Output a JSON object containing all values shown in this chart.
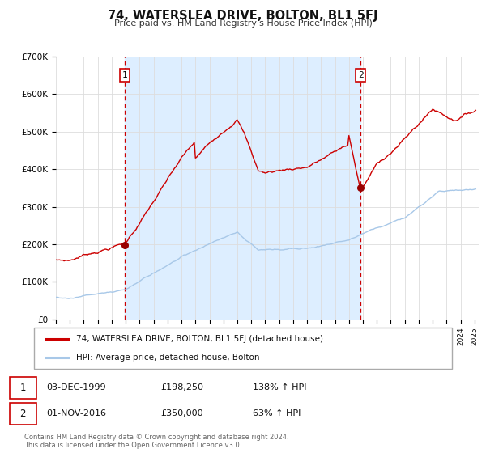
{
  "title": "74, WATERSLEA DRIVE, BOLTON, BL1 5FJ",
  "subtitle": "Price paid vs. HM Land Registry's House Price Index (HPI)",
  "sale1_price": 198250,
  "sale2_price": 350000,
  "hpi_color": "#a8c8e8",
  "price_color": "#cc0000",
  "sale_dot_color": "#990000",
  "vline_color": "#cc0000",
  "span_color": "#ddeeff",
  "plot_bg": "#ffffff",
  "legend_label_price": "74, WATERSLEA DRIVE, BOLTON, BL1 5FJ (detached house)",
  "legend_label_hpi": "HPI: Average price, detached house, Bolton",
  "note1": "03-DEC-1999",
  "note1_price": "£198,250",
  "note1_pct": "138% ↑ HPI",
  "note2": "01-NOV-2016",
  "note2_price": "£350,000",
  "note2_pct": "63% ↑ HPI",
  "footer1": "Contains HM Land Registry data © Crown copyright and database right 2024.",
  "footer2": "This data is licensed under the Open Government Licence v3.0.",
  "ylim": [
    0,
    700000
  ],
  "yticks": [
    0,
    100000,
    200000,
    300000,
    400000,
    500000,
    600000,
    700000
  ],
  "ytick_labels": [
    "£0",
    "£100K",
    "£200K",
    "£300K",
    "£400K",
    "£500K",
    "£600K",
    "£700K"
  ]
}
